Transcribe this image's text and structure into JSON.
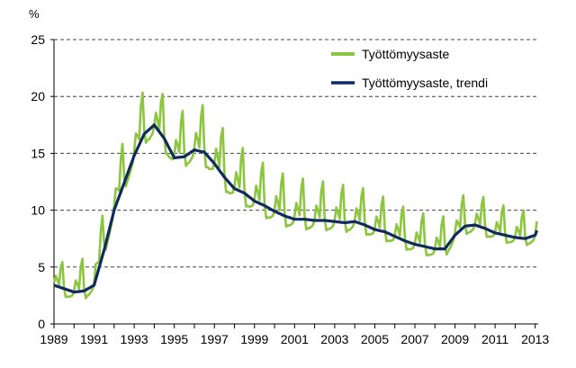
{
  "chart_data": {
    "type": "line",
    "title": "",
    "xlabel": "",
    "ylabel": "%",
    "xlim": [
      1989,
      2013.15
    ],
    "ylim": [
      0,
      25
    ],
    "yticks": [
      0,
      5,
      10,
      15,
      20,
      25
    ],
    "xticks": [
      1989,
      1991,
      1993,
      1995,
      1997,
      1999,
      2001,
      2003,
      2005,
      2007,
      2009,
      2011,
      2013
    ],
    "xtick_labels": [
      "1989",
      "1991",
      "1993",
      "1995",
      "1997",
      "1999",
      "2001",
      "2003",
      "2005",
      "2007",
      "2009",
      "2011",
      "2013"
    ],
    "ytick_labels": [
      "0",
      "5",
      "10",
      "15",
      "20",
      "25"
    ],
    "grid": "horizontal-dashed",
    "legend": "top-right",
    "series": [
      {
        "name": "Työttömyysaste",
        "color": "#8cc63f",
        "seasonal_amplitude": [
          [
            1989,
            0.9
          ],
          [
            1991,
            1.3
          ],
          [
            1993,
            1.6
          ],
          [
            1995,
            1.6
          ],
          [
            1997,
            1.8
          ],
          [
            1999,
            1.6
          ],
          [
            2001,
            1.5
          ],
          [
            2005,
            1.3
          ],
          [
            2007,
            1.2
          ],
          [
            2009,
            1.2
          ],
          [
            2013,
            1.0
          ]
        ],
        "x": [
          1989.0,
          1989.5,
          1990.0,
          1990.5,
          1991.0,
          1991.5,
          1992.0,
          1992.5,
          1993.0,
          1993.5,
          1994.0,
          1994.5,
          1995.0,
          1995.5,
          1996.0,
          1996.5,
          1997.0,
          1997.5,
          1998.0,
          1998.5,
          1999.0,
          1999.5,
          2000.0,
          2000.5,
          2001.0,
          2001.5,
          2002.0,
          2002.5,
          2003.0,
          2003.5,
          2004.0,
          2004.5,
          2005.0,
          2005.5,
          2006.0,
          2006.5,
          2007.0,
          2007.5,
          2008.0,
          2008.5,
          2009.0,
          2009.5,
          2010.0,
          2010.5,
          2011.0,
          2011.5,
          2012.0,
          2012.5,
          2013.0,
          2013.1
        ],
        "y": [
          3.5,
          3.0,
          2.8,
          2.9,
          3.5,
          6.8,
          10.2,
          12.6,
          15.0,
          16.8,
          17.3,
          16.2,
          14.7,
          14.8,
          15.3,
          15.0,
          14.0,
          12.8,
          11.9,
          11.4,
          10.8,
          10.3,
          9.9,
          9.5,
          9.3,
          9.2,
          9.1,
          9.1,
          9.0,
          8.9,
          9.0,
          8.7,
          8.3,
          8.1,
          7.7,
          7.3,
          7.0,
          6.8,
          6.5,
          6.6,
          7.9,
          8.6,
          8.7,
          8.4,
          8.0,
          7.8,
          7.6,
          7.5,
          7.7,
          8.2
        ]
      },
      {
        "name": "Työttömyysaste, trendi",
        "color": "#0f2a5c",
        "x": [
          1989.0,
          1989.5,
          1990.0,
          1990.5,
          1991.0,
          1991.5,
          1992.0,
          1992.5,
          1993.0,
          1993.5,
          1994.0,
          1994.5,
          1995.0,
          1995.5,
          1996.0,
          1996.5,
          1997.0,
          1997.5,
          1998.0,
          1998.5,
          1999.0,
          1999.5,
          2000.0,
          2000.5,
          2001.0,
          2001.5,
          2002.0,
          2002.5,
          2003.0,
          2003.5,
          2004.0,
          2004.5,
          2005.0,
          2005.5,
          2006.0,
          2006.5,
          2007.0,
          2007.5,
          2008.0,
          2008.5,
          2009.0,
          2009.5,
          2010.0,
          2010.5,
          2011.0,
          2011.5,
          2012.0,
          2012.5,
          2013.0,
          2013.1
        ],
        "y": [
          3.4,
          3.1,
          2.8,
          2.9,
          3.4,
          6.5,
          10.0,
          12.4,
          14.8,
          16.7,
          17.5,
          16.3,
          14.6,
          14.7,
          15.3,
          15.1,
          14.1,
          12.9,
          11.9,
          11.5,
          10.8,
          10.4,
          9.9,
          9.5,
          9.2,
          9.2,
          9.1,
          9.1,
          9.0,
          8.9,
          9.0,
          8.7,
          8.3,
          8.1,
          7.7,
          7.3,
          7.0,
          6.8,
          6.6,
          6.6,
          7.8,
          8.6,
          8.7,
          8.4,
          8.0,
          7.8,
          7.6,
          7.5,
          7.8,
          8.3
        ]
      }
    ]
  }
}
